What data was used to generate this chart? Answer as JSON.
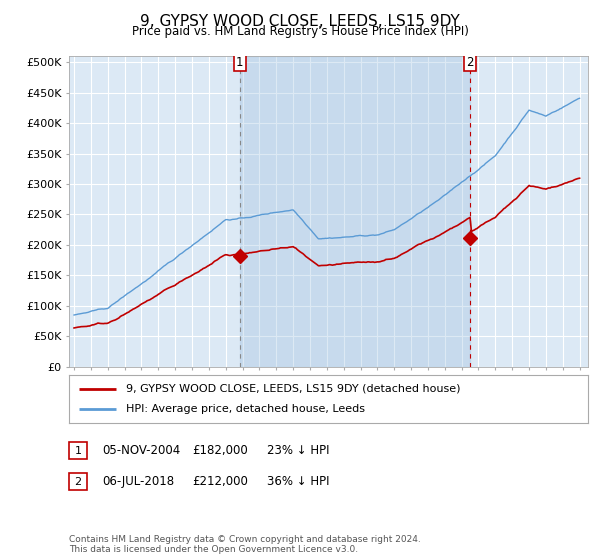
{
  "title": "9, GYPSY WOOD CLOSE, LEEDS, LS15 9DY",
  "subtitle": "Price paid vs. HM Land Registry's House Price Index (HPI)",
  "ylabel_ticks": [
    "£0",
    "£50K",
    "£100K",
    "£150K",
    "£200K",
    "£250K",
    "£300K",
    "£350K",
    "£400K",
    "£450K",
    "£500K"
  ],
  "ytick_values": [
    0,
    50000,
    100000,
    150000,
    200000,
    250000,
    300000,
    350000,
    400000,
    450000,
    500000
  ],
  "ylim": [
    0,
    510000
  ],
  "xlim_start": 1994.7,
  "xlim_end": 2025.5,
  "plot_bg_color": "#dce9f5",
  "grid_color": "#c8d8e8",
  "shade_color": "#b8d0e8",
  "sale1_price": 182000,
  "sale1_x": 2004.84,
  "sale2_price": 212000,
  "sale2_x": 2018.51,
  "legend_line1": "9, GYPSY WOOD CLOSE, LEEDS, LS15 9DY (detached house)",
  "legend_line2": "HPI: Average price, detached house, Leeds",
  "footnote": "Contains HM Land Registry data © Crown copyright and database right 2024.\nThis data is licensed under the Open Government Licence v3.0.",
  "table_row1": [
    "1",
    "05-NOV-2004",
    "£182,000",
    "23% ↓ HPI"
  ],
  "table_row2": [
    "2",
    "06-JUL-2018",
    "£212,000",
    "36% ↓ HPI"
  ],
  "hpi_color": "#5b9bd5",
  "property_color": "#c00000",
  "vline_color": "#c00000",
  "marker_box_color": "#c00000"
}
